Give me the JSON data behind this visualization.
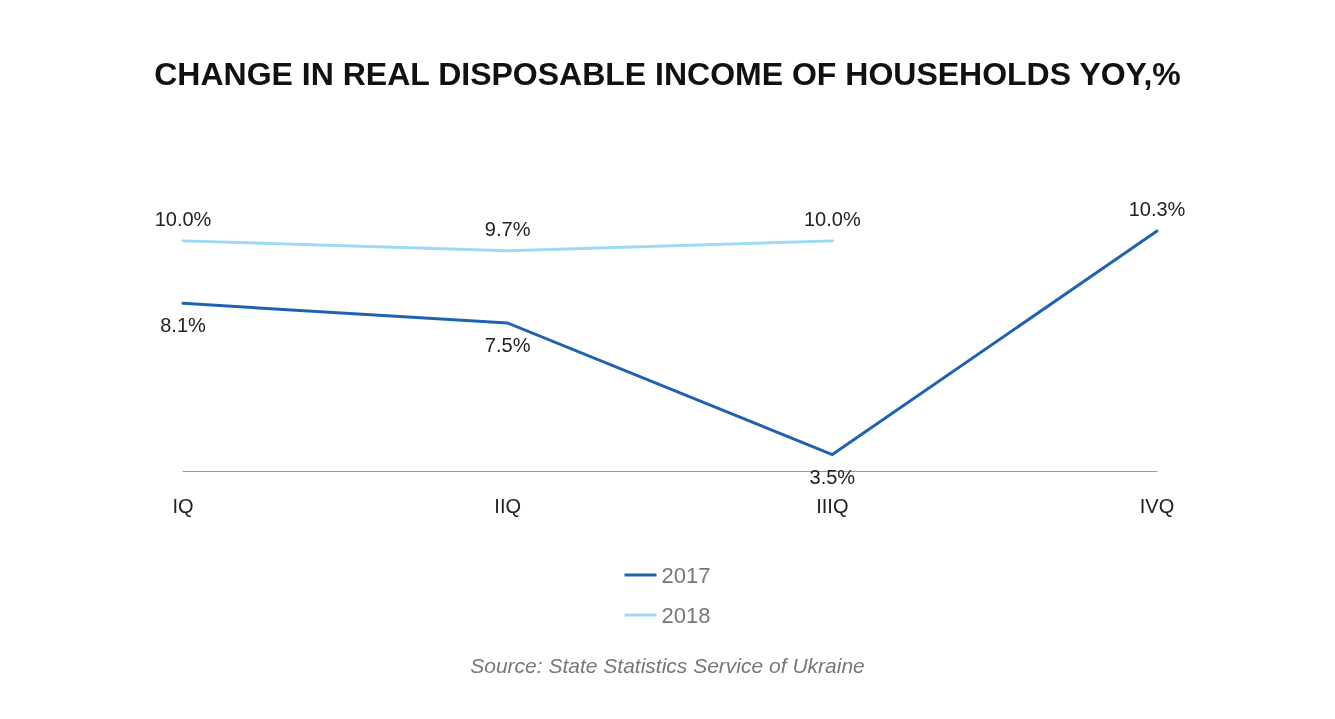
{
  "chart_data": {
    "type": "line",
    "title": "CHANGE IN REAL DISPOSABLE INCOME OF HOUSEHOLDS YOY,%",
    "categories": [
      "IQ",
      "IIQ",
      "IIIQ",
      "IVQ"
    ],
    "series": [
      {
        "name": "2017",
        "color": "#1f63b0",
        "values": [
          8.1,
          7.5,
          3.5,
          10.3
        ],
        "value_labels": [
          "8.1%",
          "7.5%",
          "3.5%",
          "10.3%"
        ]
      },
      {
        "name": "2018",
        "color": "#9dd8f5",
        "values": [
          10.0,
          9.7,
          10.0,
          null
        ],
        "value_labels": [
          "10.0%",
          "9.7%",
          "10.0%",
          null
        ]
      }
    ],
    "legend": "bottom",
    "grid": false,
    "marker": "none",
    "line_style": "solid",
    "annotations": [
      "Source: State Statistics Service of Ukraine"
    ]
  }
}
